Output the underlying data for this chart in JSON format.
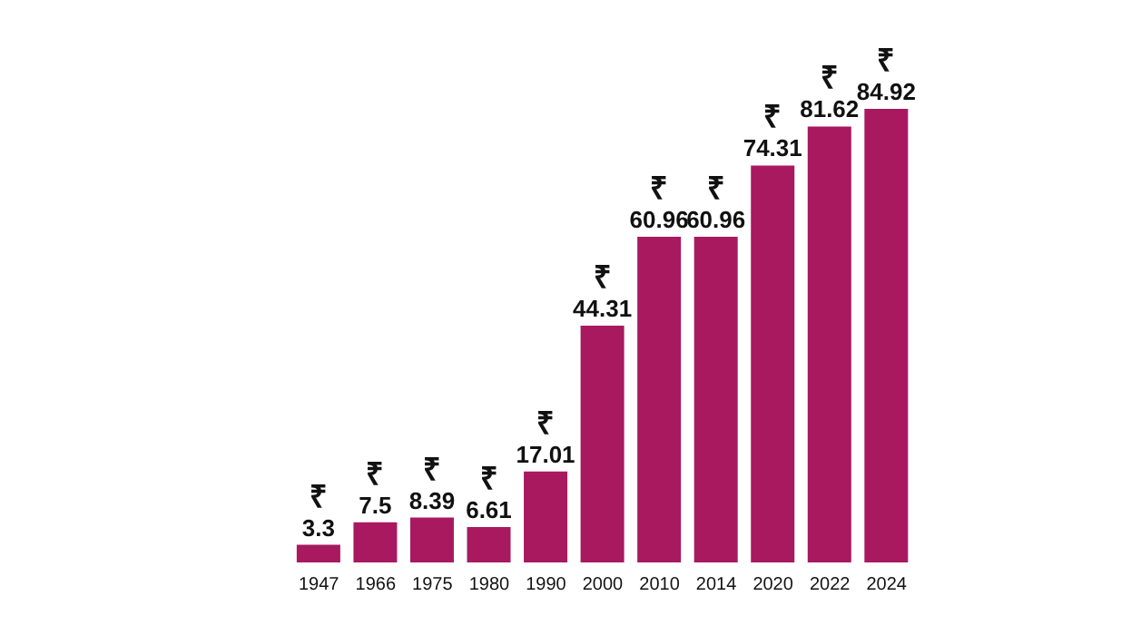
{
  "chart_data": {
    "type": "bar",
    "categories": [
      "1947",
      "1966",
      "1975",
      "1980",
      "1990",
      "2000",
      "2010",
      "2014",
      "2020",
      "2022",
      "2024"
    ],
    "values": [
      3.3,
      7.5,
      8.39,
      6.61,
      17.01,
      44.31,
      60.96,
      60.96,
      74.31,
      81.62,
      84.92
    ],
    "value_labels": [
      "₹ 3.3",
      "₹ 7.5",
      "₹ 8.39",
      "₹ 6.61",
      "₹ 17.01",
      "₹ 44.31",
      "₹ 60.96",
      "₹ 60.96",
      "₹ 74.31",
      "₹ 81.62",
      "₹ 84.92"
    ],
    "color": "#a8195f"
  }
}
